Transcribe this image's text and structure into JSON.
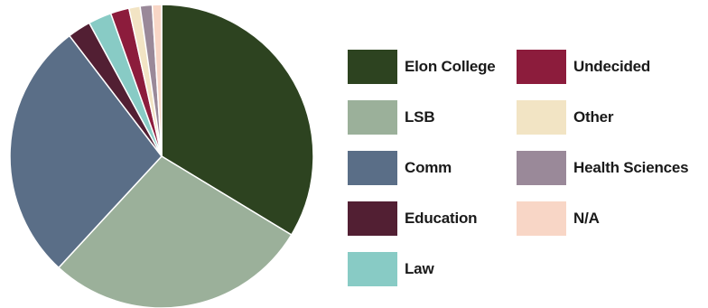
{
  "chart_data": {
    "type": "pie",
    "title": "",
    "categories": [
      "Elon College",
      "LSB",
      "Comm",
      "Education",
      "Law",
      "Undecided",
      "Other",
      "Health Sciences",
      "N/A"
    ],
    "values": [
      34.0,
      28.5,
      28.0,
      2.5,
      2.5,
      2.0,
      1.2,
      1.3,
      1.0
    ],
    "unit": "%",
    "colors": [
      "#2d4320",
      "#9bb09a",
      "#5a6e87",
      "#521f33",
      "#88cbc5",
      "#8c1c3c",
      "#f2e4c4",
      "#9a8999",
      "#f8d6c6"
    ],
    "legend_position": "right",
    "start_angle": "12 o'clock",
    "direction": "clockwise"
  }
}
